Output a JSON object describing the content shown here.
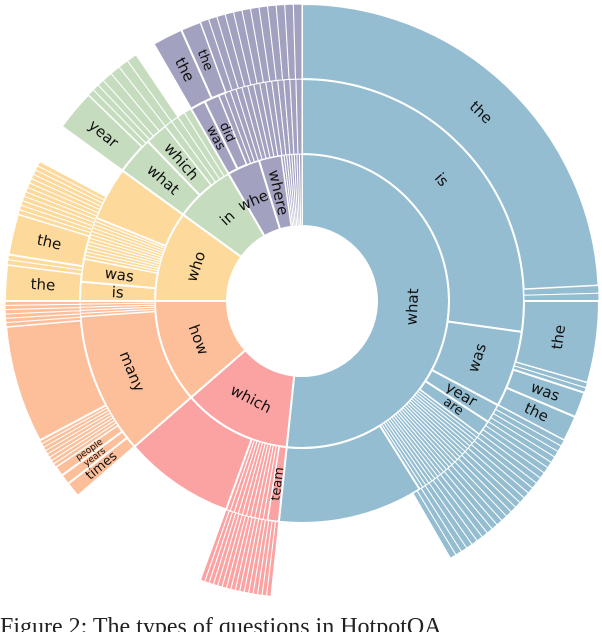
{
  "chart_data": {
    "type": "sunburst",
    "title": "",
    "caption": "Figure 2: The types of questions in HotpotQA",
    "center": [
      302,
      301
    ],
    "radii": [
      75,
      147,
      222,
      297
    ],
    "colors": {
      "what": "#94bdd1",
      "which": "#fba3a3",
      "how": "#fdbf9a",
      "who": "#fdd99b",
      "in": "#c6dcbf",
      "purple": "#a2a2c0"
    },
    "level1": [
      {
        "label": "what",
        "start": 0,
        "end": 186,
        "color": "what"
      },
      {
        "label": "which",
        "start": 186,
        "end": 229,
        "color": "which"
      },
      {
        "label": "how",
        "start": 229,
        "end": 270,
        "color": "how"
      },
      {
        "label": "who",
        "start": 270,
        "end": 306,
        "color": "who"
      },
      {
        "label": "in",
        "start": 306,
        "end": 330,
        "color": "in"
      },
      {
        "label": "when",
        "start": 330,
        "end": 343,
        "color": "purple"
      },
      {
        "label": "where",
        "start": 343,
        "end": 352,
        "color": "purple"
      },
      {
        "label": "",
        "start": 352,
        "end": 360,
        "color": "purple",
        "slivers": 8
      }
    ],
    "level2": [
      {
        "label": "is",
        "start": 0,
        "end": 98,
        "color": "what"
      },
      {
        "label": "was",
        "start": 98,
        "end": 118,
        "color": "what"
      },
      {
        "label": "year",
        "start": 118,
        "end": 123,
        "color": "what"
      },
      {
        "label": "are",
        "start": 123,
        "end": 127,
        "color": "what"
      },
      {
        "label": "",
        "start": 127,
        "end": 148,
        "color": "what",
        "slivers": 22
      },
      {
        "label": "",
        "start": 148,
        "end": 186,
        "color": "what"
      },
      {
        "label": "team",
        "start": 186,
        "end": 189,
        "color": "which"
      },
      {
        "label": "",
        "start": 189,
        "end": 200,
        "color": "which",
        "slivers": 10
      },
      {
        "label": "",
        "start": 200,
        "end": 229,
        "color": "which"
      },
      {
        "label": "many",
        "start": 229,
        "end": 266,
        "color": "how"
      },
      {
        "label": "",
        "start": 266,
        "end": 270,
        "color": "how",
        "slivers": 5
      },
      {
        "label": "is",
        "start": 270,
        "end": 275,
        "color": "who"
      },
      {
        "label": "was",
        "start": 275,
        "end": 281,
        "color": "who"
      },
      {
        "label": "",
        "start": 281,
        "end": 292,
        "color": "who",
        "slivers": 12
      },
      {
        "label": "",
        "start": 292,
        "end": 306,
        "color": "who"
      },
      {
        "label": "what",
        "start": 306,
        "end": 316,
        "color": "in"
      },
      {
        "label": "which",
        "start": 316,
        "end": 322,
        "color": "in"
      },
      {
        "label": "",
        "start": 322,
        "end": 330,
        "color": "in",
        "slivers": 4
      },
      {
        "label": "was",
        "start": 330,
        "end": 334,
        "color": "purple"
      },
      {
        "label": "did",
        "start": 334,
        "end": 338,
        "color": "purple"
      },
      {
        "label": "",
        "start": 338,
        "end": 360,
        "color": "purple",
        "slivers": 14
      }
    ],
    "level3": [
      {
        "label": "the",
        "start": 0,
        "end": 87,
        "color": "what"
      },
      {
        "label": "",
        "start": 87,
        "end": 90,
        "color": "what",
        "slivers": 2
      },
      {
        "label": "the",
        "start": 90,
        "end": 106,
        "color": "what"
      },
      {
        "label": "",
        "start": 106,
        "end": 108,
        "color": "what",
        "slivers": 2
      },
      {
        "label": "was",
        "start": 108,
        "end": 113,
        "color": "what"
      },
      {
        "label": "the",
        "start": 113,
        "end": 118,
        "color": "what"
      },
      {
        "label": "",
        "start": 118,
        "end": 150,
        "color": "what",
        "slivers": 26
      },
      {
        "label": "",
        "start": 186,
        "end": 200,
        "color": "which",
        "slivers": 16
      },
      {
        "label": "times",
        "start": 229,
        "end": 232,
        "color": "how"
      },
      {
        "label": "years",
        "start": 232,
        "end": 234,
        "color": "how"
      },
      {
        "label": "people",
        "start": 234,
        "end": 236,
        "color": "how"
      },
      {
        "label": "",
        "start": 236,
        "end": 242,
        "color": "how",
        "slivers": 8
      },
      {
        "label": "",
        "start": 242,
        "end": 265,
        "color": "how"
      },
      {
        "label": "",
        "start": 265,
        "end": 270,
        "color": "how",
        "slivers": 6
      },
      {
        "label": "the",
        "start": 270,
        "end": 277,
        "color": "who"
      },
      {
        "label": "",
        "start": 277,
        "end": 279,
        "color": "who",
        "slivers": 2
      },
      {
        "label": "the",
        "start": 279,
        "end": 287,
        "color": "who"
      },
      {
        "label": "",
        "start": 287,
        "end": 298,
        "color": "who",
        "slivers": 12
      },
      {
        "label": "year",
        "start": 306,
        "end": 314,
        "color": "in"
      },
      {
        "label": "",
        "start": 314,
        "end": 318,
        "color": "in",
        "slivers": 3
      },
      {
        "label": "",
        "start": 318,
        "end": 326,
        "color": "in",
        "slivers": 4
      },
      {
        "label": "the",
        "start": 330,
        "end": 336,
        "color": "purple"
      },
      {
        "label": "the",
        "start": 336,
        "end": 340,
        "color": "purple"
      },
      {
        "label": "",
        "start": 340,
        "end": 360,
        "color": "purple",
        "slivers": 12
      }
    ],
    "text_labels_visible": [
      "what",
      "is",
      "the",
      "was",
      "the",
      "year",
      "are",
      "was",
      "the",
      "which",
      "team",
      "how",
      "many",
      "people",
      "years",
      "times",
      "who",
      "is",
      "was",
      "the",
      "the",
      "in",
      "what",
      "which",
      "year",
      "when",
      "where",
      "was",
      "did",
      "the",
      "the"
    ]
  }
}
